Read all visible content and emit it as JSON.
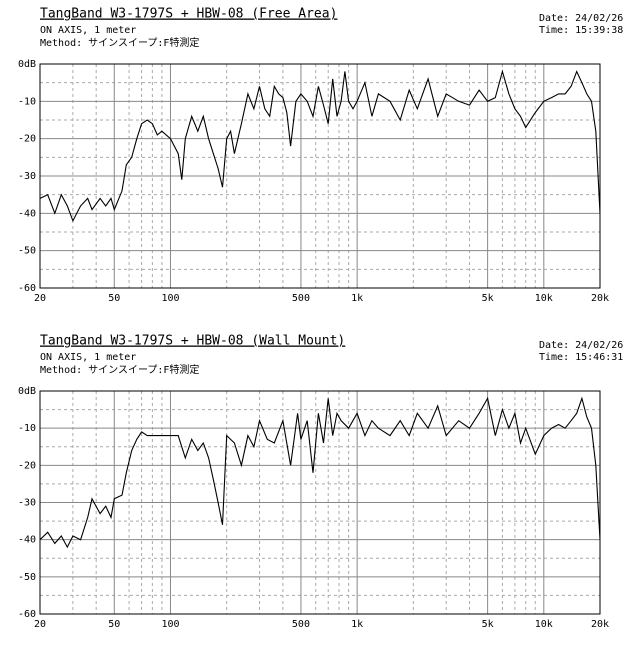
{
  "chart_data": [
    {
      "type": "line",
      "title": "TangBand W3-1797S + HBW-08 (Free Area)",
      "notes": [
        "ON AXIS, 1 meter",
        "Method: サインスイープ:F特測定"
      ],
      "date": "Date: 24/02/26",
      "time": "Time: 15:39:38",
      "log_x": true,
      "color": "#000000",
      "grid": true,
      "xlim": [
        20,
        20000
      ],
      "ylim": [
        -60,
        0
      ],
      "xticks": [
        20,
        50,
        100,
        500,
        {
          "value": 1000,
          "label": "1k"
        },
        {
          "value": 5000,
          "label": "5k"
        },
        {
          "value": 10000,
          "label": "10k"
        },
        {
          "value": 20000,
          "label": "20k"
        }
      ],
      "xgrid_minor": [
        30,
        40,
        60,
        70,
        80,
        90,
        200,
        300,
        400,
        600,
        700,
        800,
        900,
        2000,
        3000,
        4000,
        6000,
        7000,
        8000,
        9000
      ],
      "yticks": [
        {
          "value": 0,
          "label": "0dB"
        },
        -10,
        -20,
        -30,
        -40,
        -50,
        -60
      ],
      "ygrid_minor": [
        -5,
        -15,
        -25,
        -35,
        -45,
        -55
      ],
      "x": [
        20,
        22,
        24,
        26,
        28,
        30,
        33,
        36,
        38,
        42,
        45,
        48,
        50,
        55,
        58,
        62,
        66,
        70,
        75,
        80,
        85,
        90,
        100,
        110,
        115,
        120,
        130,
        140,
        150,
        160,
        180,
        190,
        200,
        210,
        220,
        240,
        260,
        280,
        300,
        320,
        340,
        360,
        380,
        400,
        420,
        440,
        470,
        500,
        540,
        580,
        620,
        660,
        700,
        740,
        780,
        820,
        860,
        900,
        950,
        1000,
        1100,
        1200,
        1300,
        1500,
        1700,
        1900,
        2100,
        2400,
        2700,
        3000,
        3500,
        4000,
        4500,
        5000,
        5500,
        6000,
        6500,
        7000,
        7500,
        8000,
        9000,
        10000,
        11000,
        12000,
        13000,
        14000,
        15000,
        16000,
        17000,
        18000,
        19000,
        20000
      ],
      "y": [
        -36,
        -35,
        -40,
        -35,
        -38,
        -42,
        -38,
        -36,
        -39,
        -36,
        -38,
        -36,
        -39,
        -34,
        -27,
        -25,
        -20,
        -16,
        -15,
        -16,
        -19,
        -18,
        -20,
        -24,
        -31,
        -20,
        -14,
        -18,
        -14,
        -20,
        -28,
        -33,
        -20,
        -18,
        -24,
        -16,
        -8,
        -12,
        -6,
        -12,
        -14,
        -6,
        -8,
        -9,
        -13,
        -22,
        -10,
        -8,
        -10,
        -14,
        -6,
        -11,
        -16,
        -4,
        -14,
        -10,
        -2,
        -10,
        -12,
        -10,
        -5,
        -14,
        -8,
        -10,
        -15,
        -7,
        -12,
        -4,
        -14,
        -8,
        -10,
        -11,
        -7,
        -10,
        -9,
        -2,
        -8,
        -12,
        -14,
        -17,
        -13,
        -10,
        -9,
        -8,
        -8,
        -6,
        -2,
        -5,
        -8,
        -10,
        -18,
        -40
      ]
    },
    {
      "type": "line",
      "title": "TangBand W3-1797S + HBW-08 (Wall Mount)",
      "notes": [
        "ON AXIS, 1 meter",
        "Method: サインスイープ:F特測定"
      ],
      "date": "Date: 24/02/26",
      "time": "Time: 15:46:31",
      "log_x": true,
      "color": "#000000",
      "grid": true,
      "xlim": [
        20,
        20000
      ],
      "ylim": [
        -60,
        0
      ],
      "xticks": [
        20,
        50,
        100,
        500,
        {
          "value": 1000,
          "label": "1k"
        },
        {
          "value": 5000,
          "label": "5k"
        },
        {
          "value": 10000,
          "label": "10k"
        },
        {
          "value": 20000,
          "label": "20k"
        }
      ],
      "xgrid_minor": [
        30,
        40,
        60,
        70,
        80,
        90,
        200,
        300,
        400,
        600,
        700,
        800,
        900,
        2000,
        3000,
        4000,
        6000,
        7000,
        8000,
        9000
      ],
      "yticks": [
        {
          "value": 0,
          "label": "0dB"
        },
        -10,
        -20,
        -30,
        -40,
        -50,
        -60
      ],
      "ygrid_minor": [
        -5,
        -15,
        -25,
        -35,
        -45,
        -55
      ],
      "x": [
        20,
        22,
        24,
        26,
        28,
        30,
        33,
        36,
        38,
        42,
        45,
        48,
        50,
        55,
        58,
        62,
        66,
        70,
        75,
        80,
        90,
        100,
        110,
        120,
        130,
        140,
        150,
        160,
        170,
        180,
        190,
        200,
        220,
        240,
        260,
        280,
        300,
        330,
        360,
        400,
        440,
        480,
        500,
        540,
        580,
        620,
        660,
        700,
        740,
        780,
        820,
        900,
        1000,
        1100,
        1200,
        1300,
        1500,
        1700,
        1900,
        2100,
        2400,
        2700,
        3000,
        3500,
        4000,
        4500,
        5000,
        5500,
        6000,
        6500,
        7000,
        7500,
        8000,
        9000,
        10000,
        11000,
        12000,
        13000,
        14000,
        15000,
        16000,
        17000,
        18000,
        19000,
        20000
      ],
      "y": [
        -40,
        -38,
        -41,
        -39,
        -42,
        -39,
        -40,
        -34,
        -29,
        -33,
        -31,
        -34,
        -29,
        -28,
        -22,
        -16,
        -13,
        -11,
        -12,
        -12,
        -12,
        -12,
        -12,
        -18,
        -13,
        -16,
        -14,
        -18,
        -24,
        -30,
        -36,
        -12,
        -14,
        -20,
        -12,
        -15,
        -8,
        -13,
        -14,
        -8,
        -20,
        -6,
        -13,
        -8,
        -22,
        -6,
        -14,
        -2,
        -12,
        -6,
        -8,
        -10,
        -6,
        -12,
        -8,
        -10,
        -12,
        -8,
        -12,
        -6,
        -10,
        -4,
        -12,
        -8,
        -10,
        -6,
        -2,
        -12,
        -5,
        -10,
        -6,
        -14,
        -10,
        -17,
        -12,
        -10,
        -9,
        -10,
        -8,
        -6,
        -2,
        -7,
        -10,
        -20,
        -40
      ]
    }
  ]
}
